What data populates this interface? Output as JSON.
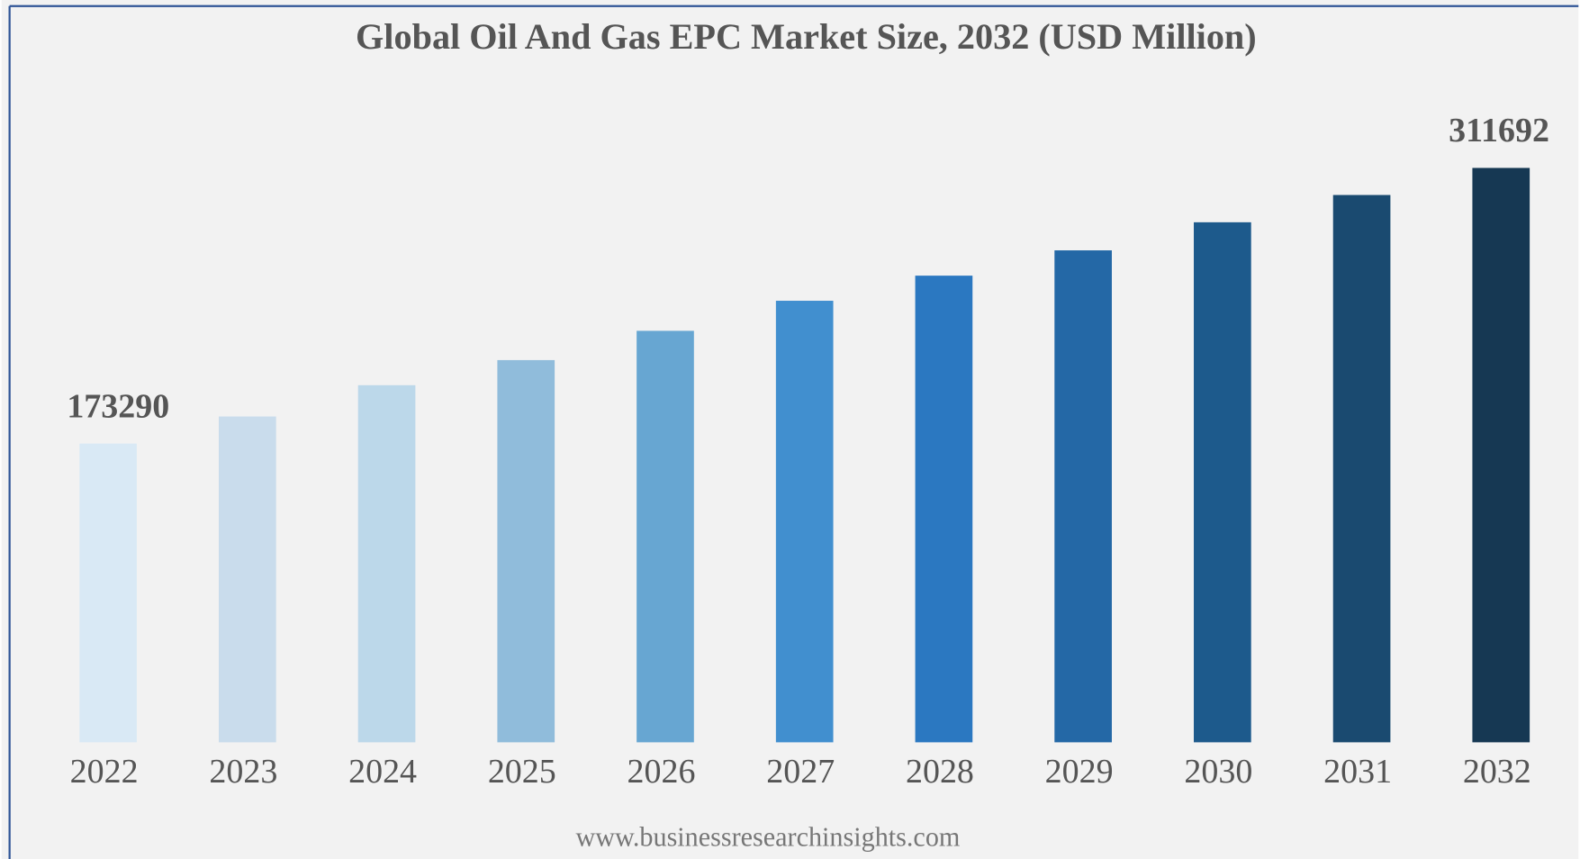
{
  "chart_data": {
    "type": "bar",
    "title": "Global Oil And Gas EPC Market Size, 2032 (USD Million)",
    "categories": [
      "2022",
      "2023",
      "2024",
      "2025",
      "2026",
      "2027",
      "2028",
      "2029",
      "2030",
      "2031",
      "2032"
    ],
    "values": [
      173290,
      186900,
      202600,
      215200,
      229900,
      245000,
      257600,
      270300,
      284400,
      298100,
      311692
    ],
    "colors": [
      "#d9e9f5",
      "#c9dcec",
      "#bcd8ea",
      "#90bcdb",
      "#67a6d2",
      "#418fcf",
      "#2b78c1",
      "#2468a6",
      "#1d5a8c",
      "#1a4a70",
      "#163853"
    ],
    "ylim": [
      23300,
      345500
    ],
    "source": "www.businessresearchinsights.com"
  }
}
